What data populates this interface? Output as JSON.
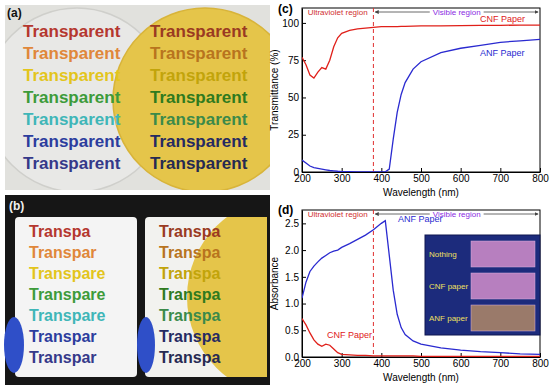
{
  "photos": [
    {
      "label": "(a)",
      "columns": [
        {
          "texts": [
            "Transparent",
            "Transparent",
            "Transparent",
            "Transparent",
            "Transparent",
            "Transparent",
            "Transparent"
          ],
          "colors": [
            "#b5372f",
            "#e0873a",
            "#e3c51c",
            "#3d9b3a",
            "#3fb6b8",
            "#2c3d9e",
            "#35398a"
          ]
        },
        {
          "texts": [
            "Transparent",
            "Transparent",
            "Transparent",
            "Transparent",
            "Transparent",
            "Transparent",
            "Transparent"
          ],
          "colors": [
            "#9a3a22",
            "#b8741e",
            "#c2a40a",
            "#2f7a1e",
            "#3b8a4a",
            "#252a62",
            "#262a52"
          ]
        }
      ]
    },
    {
      "label": "(b)",
      "columns": [
        {
          "texts": [
            "Transpa",
            "Transpar",
            "Transpare",
            "Transpare",
            "Transpare",
            "Transpar",
            "Transpar"
          ],
          "colors": [
            "#b5372f",
            "#e0873a",
            "#e3c51c",
            "#3d9b3a",
            "#3fb6b8",
            "#2c3d9e",
            "#35398a"
          ]
        },
        {
          "texts": [
            "Transpa",
            "Transpa",
            "Transpa",
            "Transpa",
            "Transpa",
            "Transpa",
            "Transpa"
          ],
          "colors": [
            "#9a3a22",
            "#b8741e",
            "#c2a40a",
            "#2f7a1e",
            "#3b8a4a",
            "#252a62",
            "#262a52"
          ]
        }
      ]
    }
  ],
  "chart_data": [
    {
      "type": "line",
      "title": "(c)",
      "x_label": "Wavelength (nm)",
      "y_label": "Transmittance (%)",
      "x": [
        200,
        210,
        220,
        230,
        240,
        250,
        260,
        270,
        280,
        290,
        300,
        320,
        340,
        360,
        380,
        400,
        410,
        420,
        430,
        440,
        450,
        460,
        480,
        500,
        550,
        600,
        650,
        700,
        750,
        800
      ],
      "xlim": [
        200,
        800
      ],
      "xticks": [
        200,
        300,
        400,
        500,
        600,
        700,
        800
      ],
      "ylim": [
        0,
        110
      ],
      "yticks": [
        0,
        25,
        50,
        75,
        100
      ],
      "regions": [
        {
          "label": "Ultraviolet region",
          "x": [
            200,
            380
          ]
        },
        {
          "label": "Visible region",
          "x": [
            380,
            800
          ]
        }
      ],
      "series": [
        {
          "name": "CNF Paper",
          "color": "#e0201a",
          "values": [
            77,
            72,
            65,
            63,
            67,
            70,
            69,
            75,
            84,
            90,
            93,
            95,
            96,
            96.5,
            97,
            97.5,
            97.5,
            97.5,
            97.5,
            97.5,
            97.7,
            97.7,
            97.8,
            98,
            98,
            98.2,
            98.3,
            98.4,
            98.5,
            98.5
          ]
        },
        {
          "name": "ANF Paper",
          "color": "#2a2ad0",
          "values": [
            8,
            6,
            4,
            3,
            2.5,
            2,
            1.5,
            1,
            0.8,
            0.5,
            0.3,
            0.2,
            0.1,
            0.1,
            0.1,
            0.1,
            0.1,
            2,
            22,
            40,
            52,
            60,
            69,
            74,
            80,
            83,
            85,
            87,
            88,
            89
          ]
        }
      ]
    },
    {
      "type": "line",
      "title": "(d)",
      "x_label": "Wavelength (nm)",
      "y_label": "Absorbance",
      "x": [
        200,
        210,
        220,
        230,
        240,
        250,
        260,
        270,
        280,
        290,
        300,
        320,
        340,
        360,
        380,
        400,
        410,
        420,
        430,
        440,
        450,
        460,
        480,
        500,
        550,
        600,
        650,
        700,
        750,
        800
      ],
      "xlim": [
        200,
        800
      ],
      "xticks": [
        200,
        300,
        400,
        500,
        600,
        700,
        800
      ],
      "ylim": [
        0,
        2.75
      ],
      "yticks": [
        {
          "value": 0,
          "label": "0.0"
        },
        0.5,
        {
          "value": 1,
          "label": "1.0"
        },
        1.5,
        {
          "value": 2,
          "label": "2.0"
        },
        2.5
      ],
      "regions": [
        {
          "label": "Ultraviolet region",
          "x": [
            200,
            380
          ]
        },
        {
          "label": "Visible region",
          "x": [
            380,
            800
          ]
        }
      ],
      "series": [
        {
          "name": "ANF Paper",
          "color": "#2a2ad0",
          "values": [
            1.1,
            1.4,
            1.6,
            1.7,
            1.78,
            1.85,
            1.9,
            1.95,
            1.98,
            2.0,
            2.05,
            2.12,
            2.2,
            2.28,
            2.38,
            2.5,
            2.55,
            1.9,
            1.25,
            0.8,
            0.55,
            0.42,
            0.3,
            0.24,
            0.17,
            0.13,
            0.1,
            0.08,
            0.06,
            0.05
          ]
        },
        {
          "name": "CNF Paper",
          "color": "#e0201a",
          "values": [
            0.72,
            0.6,
            0.45,
            0.32,
            0.24,
            0.2,
            0.24,
            0.22,
            0.15,
            0.08,
            0.05,
            0.04,
            0.03,
            0.03,
            0.02,
            0.02,
            0.02,
            0.02,
            0.02,
            0.02,
            0.02,
            0.02,
            0.02,
            0.01,
            0.01,
            0.01,
            0.01,
            0.01,
            0.01,
            0.01
          ]
        }
      ]
    }
  ],
  "inset": {
    "texts": [
      "Nothing",
      "CNF paper",
      "ANF paper"
    ]
  }
}
